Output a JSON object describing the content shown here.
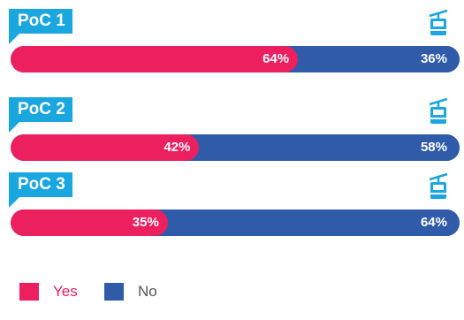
{
  "colors": {
    "yes": "#ec1f5f",
    "no": "#2f5ba8",
    "label_bg": "#1aa6de"
  },
  "legend": [
    {
      "name": "Yes",
      "color": "#ec1f5f"
    },
    {
      "name": "No",
      "color": "#2f5ba8"
    }
  ],
  "chart_data": {
    "type": "bar",
    "orientation": "horizontal-stacked",
    "categories": [
      "PoC 1",
      "PoC 2",
      "PoC 3"
    ],
    "series": [
      {
        "name": "Yes",
        "values": [
          64,
          42,
          35
        ],
        "labels": [
          "64%",
          "42%",
          "35%"
        ]
      },
      {
        "name": "No",
        "values": [
          36,
          58,
          64
        ],
        "labels": [
          "36%",
          "58%",
          "64%"
        ]
      }
    ],
    "unit": "%",
    "xlim": [
      0,
      100
    ],
    "icon": "gondola-lift-icon",
    "legend_position": "bottom-left"
  }
}
